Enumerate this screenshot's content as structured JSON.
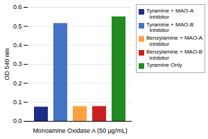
{
  "chart_data": {
    "type": "bar",
    "categories": [
      "Tyramine + MAO-A\n  Inhibitor",
      "Tyramine + MAO-B\n  Inhibitor",
      "Benzylamine + MAO-A\n  Inhibitor",
      "Benzylamine + MAO-B\n  Inhibitor",
      "Tyramine Only"
    ],
    "values": [
      0.075,
      0.515,
      0.078,
      0.078,
      0.55
    ],
    "colors": [
      "#1F2D8A",
      "#4472C4",
      "#FFA040",
      "#CC2020",
      "#228B22"
    ],
    "xlabel": "Monoamine Oxidase A (50 μg/mL)",
    "ylabel": "OD 540 nm",
    "ylim": [
      0,
      0.6
    ],
    "yticks": [
      {
        "value": 0,
        "label": "0.0"
      },
      0.1,
      0.2,
      0.3,
      0.4,
      0.5,
      0.6
    ],
    "grid": true,
    "legend": "upper right",
    "tick_labels": "y"
  }
}
